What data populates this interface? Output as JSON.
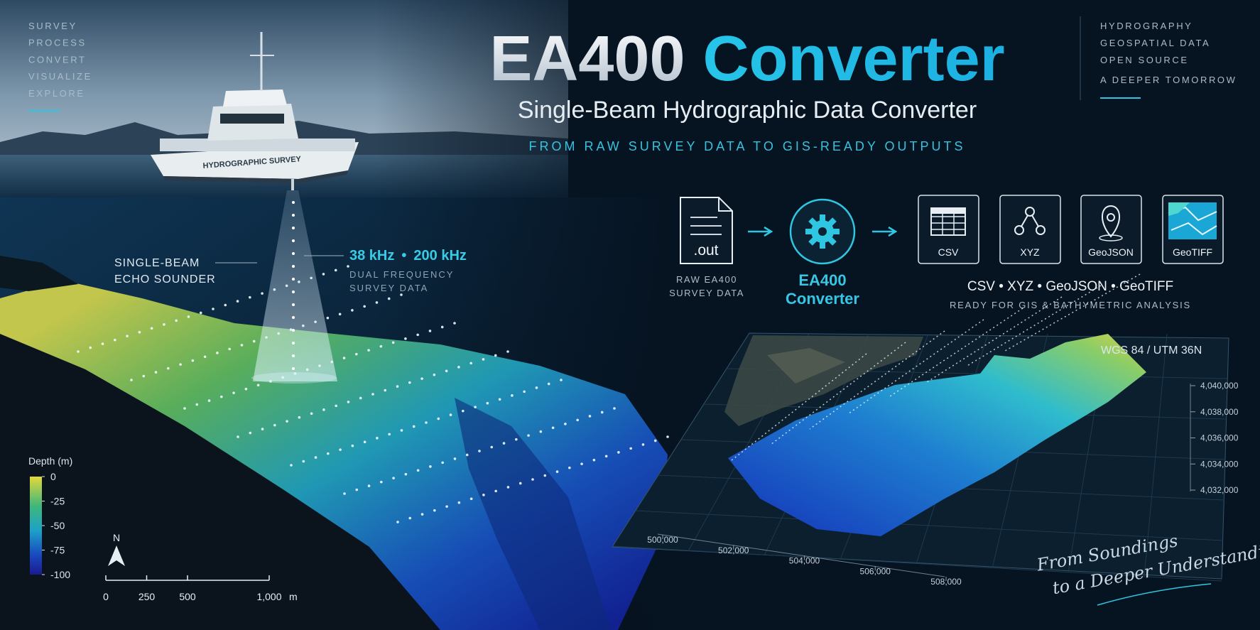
{
  "left_menu": [
    "SURVEY",
    "PROCESS",
    "CONVERT",
    "VISUALIZE",
    "EXPLORE"
  ],
  "right_menu": [
    "HYDROGRAPHY",
    "GEOSPATIAL DATA",
    "OPEN SOURCE",
    "A DEEPER TOMORROW"
  ],
  "header": {
    "title_1": "EA400",
    "title_2": "Converter",
    "subtitle": "Single-Beam Hydrographic Data Converter",
    "tagline": "FROM RAW SURVEY DATA TO GIS-READY OUTPUTS"
  },
  "boat_label": "HYDROGRAPHIC SURVEY",
  "sounder": {
    "label_1": "SINGLE-BEAM",
    "label_2": "ECHO SOUNDER",
    "freq_1": "38 kHz",
    "separator": "•",
    "freq_2": "200 kHz",
    "desc_1": "DUAL FREQUENCY",
    "desc_2": "SURVEY DATA"
  },
  "pipeline": {
    "input": {
      "icon": ".out",
      "label_1": "RAW EA400",
      "label_2": "SURVEY DATA"
    },
    "converter": {
      "label_1": "EA400",
      "label_2": "Converter"
    },
    "outputs": [
      "CSV",
      "XYZ",
      "GeoJSON",
      "GeoTIFF"
    ],
    "summary": "CSV • XYZ • GeoJSON • GeoTIFF",
    "summary_note": "READY FOR GIS & BATHYMETRIC ANALYSIS"
  },
  "map": {
    "crs": "WGS 84 / UTM 36N",
    "yticks": [
      {
        "value": 4040000,
        "label": "4,040,000"
      },
      {
        "value": 4038000,
        "label": "4,038,000"
      },
      {
        "value": 4036000,
        "label": "4,036,000"
      },
      {
        "value": 4034000,
        "label": "4,034,000"
      },
      {
        "value": 4032000,
        "label": "4,032,000"
      }
    ],
    "xticks": [
      {
        "value": 500000,
        "label": "500,000"
      },
      {
        "value": 502000,
        "label": "502,000"
      },
      {
        "value": 504000,
        "label": "504,000"
      },
      {
        "value": 506000,
        "label": "506,000"
      },
      {
        "value": 508000,
        "label": "508,000"
      }
    ]
  },
  "depth_legend": {
    "title": "Depth (m)",
    "ticks": [
      0,
      -25,
      -50,
      -75,
      -100
    ]
  },
  "north": "N",
  "scale_bar": {
    "ticks": [
      0,
      250,
      500,
      {
        "value": 1000,
        "label": "1,000"
      }
    ],
    "unit": "m"
  },
  "signature": {
    "line_1": "From Soundings",
    "line_2": "to a Deeper Understanding"
  }
}
